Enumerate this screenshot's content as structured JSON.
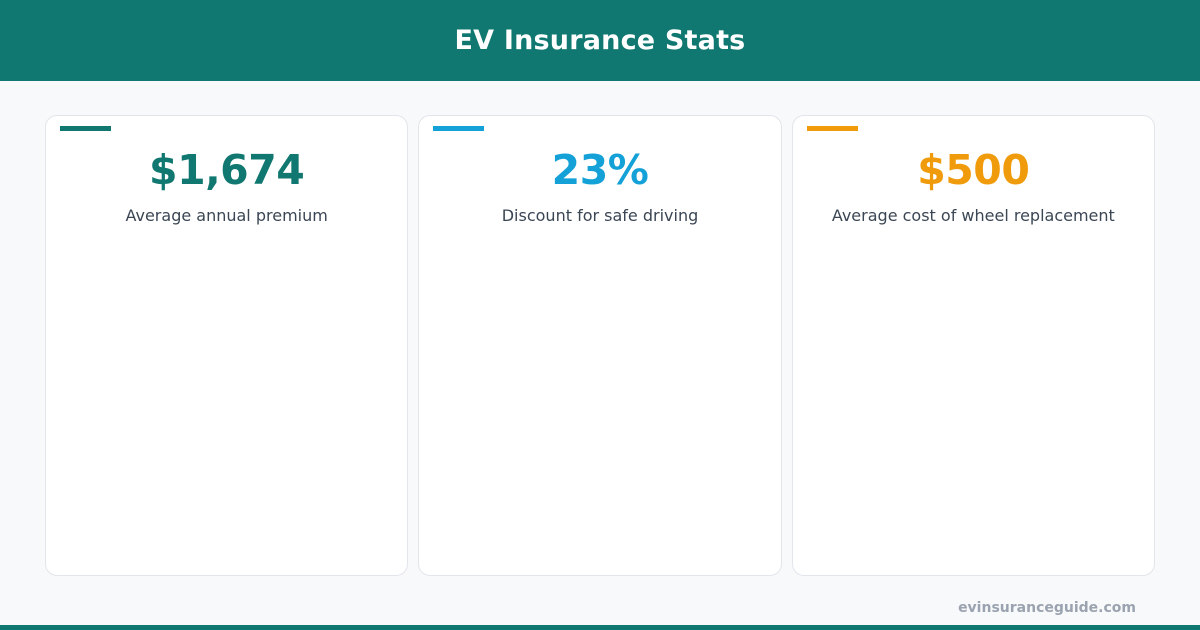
{
  "header": {
    "title": "EV Insurance Stats"
  },
  "colors": {
    "brand": "#107870",
    "blue": "#14a1d8",
    "orange": "#f09b0b",
    "label_text": "#3b4654",
    "muted": "#9aa3af"
  },
  "stats": [
    {
      "value": "$1,674",
      "label": "Average annual premium",
      "color": "#107870"
    },
    {
      "value": "23%",
      "label": "Discount for safe driving",
      "color": "#14a1d8"
    },
    {
      "value": "$500",
      "label": "Average cost of wheel replacement",
      "color": "#f09b0b"
    }
  ],
  "footer": {
    "url": "evinsuranceguide.com"
  }
}
